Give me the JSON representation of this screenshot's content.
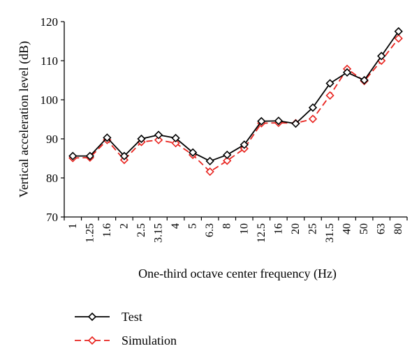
{
  "chart_data": {
    "type": "line",
    "title": "",
    "xlabel": "One-third octave center frequency (Hz)",
    "ylabel": "Vertical acceleration level (dB)",
    "ylim": [
      70,
      120
    ],
    "yticks": [
      70,
      80,
      90,
      100,
      110,
      120
    ],
    "grid": false,
    "legend_position": "bottom-left",
    "categories": [
      "1",
      "1.25",
      "1.6",
      "2",
      "2.5",
      "3.15",
      "4",
      "5",
      "6.3",
      "8",
      "10",
      "12.5",
      "16",
      "20",
      "25",
      "31.5",
      "40",
      "50",
      "63",
      "80"
    ],
    "series": [
      {
        "name": "Test",
        "color": "#000000",
        "dash": "solid",
        "marker": "diamond",
        "values": [
          85.6,
          85.6,
          90.3,
          85.6,
          90.0,
          91.0,
          90.2,
          86.5,
          84.3,
          85.9,
          88.5,
          94.5,
          94.6,
          93.9,
          98.0,
          104.2,
          107.0,
          105.0,
          111.2,
          117.5
        ]
      },
      {
        "name": "Simulation",
        "color": "#e8231e",
        "dash": "dashed",
        "marker": "diamond",
        "values": [
          85.1,
          85.2,
          89.7,
          84.6,
          89.2,
          89.7,
          88.9,
          85.9,
          81.6,
          84.4,
          87.5,
          94.0,
          94.1,
          94.0,
          95.1,
          101.1,
          107.9,
          104.8,
          110.0,
          115.7
        ]
      }
    ]
  }
}
